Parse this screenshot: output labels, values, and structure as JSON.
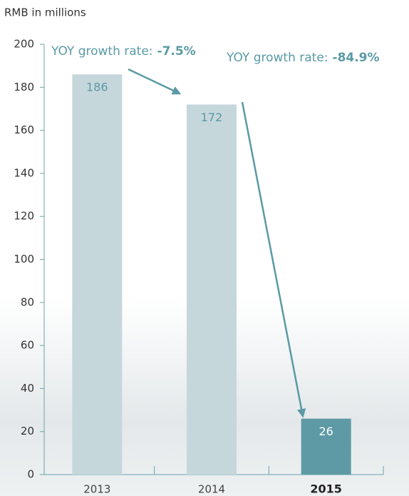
{
  "chart_data": {
    "type": "bar",
    "title": "RMB in millions",
    "categories": [
      "2013",
      "2014",
      "2015"
    ],
    "values": [
      186,
      172,
      26
    ],
    "color": "#c6d7dc",
    "highlight_color": "#5e9aa5",
    "highlight_index": 2,
    "ylim": [
      0,
      200
    ],
    "yticks": [
      0,
      20,
      40,
      60,
      80,
      100,
      120,
      140,
      160,
      180,
      200
    ],
    "annotations": [
      {
        "text": "YOY growth rate:",
        "value": "-7.5%"
      },
      {
        "text": "YOY growth rate:",
        "value": "-84.9%"
      }
    ]
  }
}
